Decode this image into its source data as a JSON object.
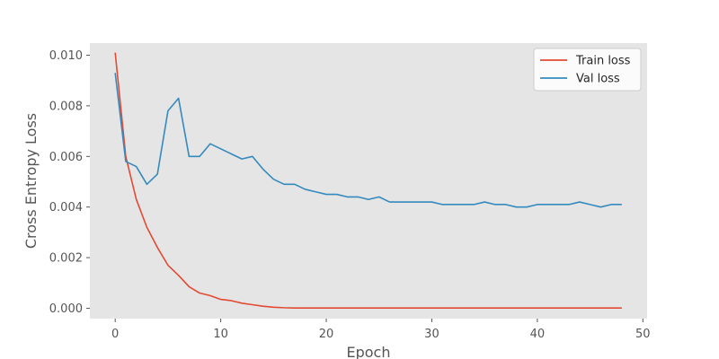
{
  "chart_data": {
    "type": "line",
    "title": "",
    "xlabel": "Epoch",
    "ylabel": "Cross Entropy Loss",
    "xlim": [
      -2.4,
      50.4
    ],
    "ylim": [
      -0.00041,
      0.01048
    ],
    "xticks": [
      0,
      10,
      20,
      30,
      40,
      50
    ],
    "xtick_labels": [
      "0",
      "10",
      "20",
      "30",
      "40",
      "50"
    ],
    "yticks": [
      0.0,
      0.002,
      0.004,
      0.006,
      0.008,
      0.01
    ],
    "ytick_labels": [
      "0.000",
      "0.002",
      "0.004",
      "0.006",
      "0.008",
      "0.010"
    ],
    "grid": false,
    "legend_position": "top-right",
    "background": "#e5e5e5",
    "series": [
      {
        "name": "Train loss",
        "color": "#e24a33",
        "x": [
          0,
          1,
          2,
          3,
          4,
          5,
          6,
          7,
          8,
          9,
          10,
          11,
          12,
          13,
          14,
          15,
          16,
          17,
          18,
          19,
          20,
          21,
          22,
          23,
          24,
          25,
          26,
          27,
          28,
          29,
          30,
          31,
          32,
          33,
          34,
          35,
          36,
          37,
          38,
          39,
          40,
          41,
          42,
          43,
          44,
          45,
          46,
          47,
          48
        ],
        "values": [
          0.0101,
          0.006,
          0.0043,
          0.0032,
          0.0024,
          0.0017,
          0.0013,
          0.00085,
          0.0006,
          0.0005,
          0.00035,
          0.0003,
          0.0002,
          0.00014,
          8e-05,
          4e-05,
          2e-05,
          1e-05,
          1e-05,
          1e-05,
          1e-05,
          1e-05,
          1e-05,
          1e-05,
          1e-05,
          1e-05,
          1e-05,
          1e-05,
          1e-05,
          1e-05,
          1e-05,
          1e-05,
          1e-05,
          1e-05,
          1e-05,
          1e-05,
          1e-05,
          1e-05,
          1e-05,
          1e-05,
          1e-05,
          1e-05,
          1e-05,
          1e-05,
          1e-05,
          1e-05,
          1e-05,
          1e-05,
          1e-05
        ]
      },
      {
        "name": "Val loss",
        "color": "#348abd",
        "x": [
          0,
          1,
          2,
          3,
          4,
          5,
          6,
          7,
          8,
          9,
          10,
          11,
          12,
          13,
          14,
          15,
          16,
          17,
          18,
          19,
          20,
          21,
          22,
          23,
          24,
          25,
          26,
          27,
          28,
          29,
          30,
          31,
          32,
          33,
          34,
          35,
          36,
          37,
          38,
          39,
          40,
          41,
          42,
          43,
          44,
          45,
          46,
          47,
          48
        ],
        "values": [
          0.0093,
          0.0058,
          0.0056,
          0.0049,
          0.0053,
          0.0078,
          0.0083,
          0.006,
          0.006,
          0.0065,
          0.0063,
          0.0061,
          0.0059,
          0.006,
          0.0055,
          0.0051,
          0.0049,
          0.0049,
          0.0047,
          0.0046,
          0.0045,
          0.0045,
          0.0044,
          0.0044,
          0.0043,
          0.0044,
          0.0042,
          0.0042,
          0.0042,
          0.0042,
          0.0042,
          0.0041,
          0.0041,
          0.0041,
          0.0041,
          0.0042,
          0.0041,
          0.0041,
          0.004,
          0.004,
          0.0041,
          0.0041,
          0.0041,
          0.0041,
          0.0042,
          0.0041,
          0.004,
          0.0041,
          0.0041
        ]
      }
    ]
  }
}
